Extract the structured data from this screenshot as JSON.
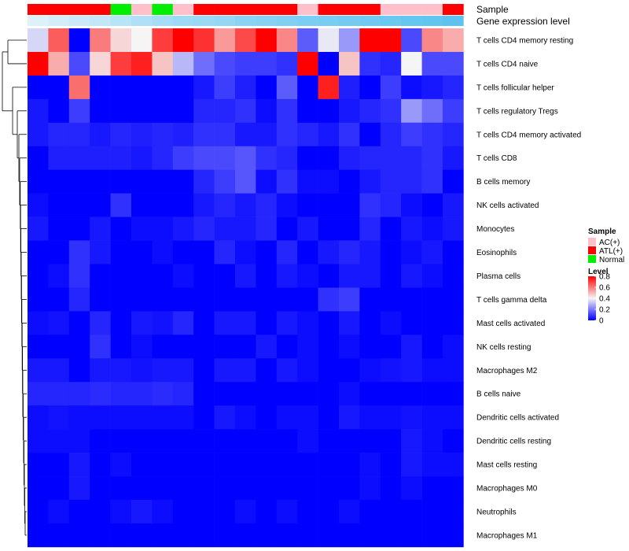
{
  "chart_data": {
    "type": "heatmap",
    "annotation_labels": [
      "Sample",
      "Gene expression level"
    ],
    "rows": [
      "T cells CD4 memory resting",
      "T cells CD4 naive",
      "T cells follicular helper",
      "T cells regulatory  Tregs",
      "T cells CD4 memory activated",
      "T cells CD8",
      "B cells memory",
      "NK cells activated",
      "Monocytes",
      "Eosinophils",
      "Plasma cells",
      "T cells gamma delta",
      "Mast cells activated",
      "NK cells resting",
      "Macrophages M2",
      "B cells naive",
      "Dendritic cells activated",
      "Dendritic cells resting",
      "Mast cells resting",
      "Macrophages M0",
      "Neutrophils",
      "Macrophages M1"
    ],
    "sample_groups": [
      "ATL(+)",
      "ATL(+)",
      "ATL(+)",
      "ATL(+)",
      "Normal",
      "AC(+)",
      "Normal",
      "AC(+)",
      "ATL(+)",
      "ATL(+)",
      "ATL(+)",
      "ATL(+)",
      "ATL(+)",
      "AC(+)",
      "ATL(+)",
      "ATL(+)",
      "ATL(+)",
      "AC(+)",
      "AC(+)",
      "AC(+)",
      "ATL(+)"
    ],
    "gene_expression_level": [
      0.05,
      0.1,
      0.15,
      0.2,
      0.25,
      0.3,
      0.35,
      0.4,
      0.42,
      0.45,
      0.5,
      0.52,
      0.55,
      0.58,
      0.6,
      0.62,
      0.65,
      0.67,
      0.7,
      0.72,
      0.75
    ],
    "values": [
      [
        0.35,
        0.65,
        0.0,
        0.6,
        0.45,
        0.4,
        0.7,
        0.8,
        0.72,
        0.55,
        0.68,
        0.8,
        0.58,
        0.15,
        0.38,
        0.25,
        0.8,
        0.8,
        0.12,
        0.58,
        0.52
      ],
      [
        0.8,
        0.52,
        0.12,
        0.45,
        0.7,
        0.75,
        0.48,
        0.3,
        0.18,
        0.12,
        0.1,
        0.1,
        0.08,
        0.8,
        0.0,
        0.48,
        0.08,
        0.06,
        0.4,
        0.12,
        0.12
      ],
      [
        0.0,
        0.0,
        0.62,
        0.0,
        0.0,
        0.0,
        0.0,
        0.0,
        0.04,
        0.1,
        0.05,
        0.0,
        0.15,
        0.0,
        0.75,
        0.05,
        0.0,
        0.1,
        0.02,
        0.04,
        0.06
      ],
      [
        0.04,
        0.0,
        0.1,
        0.0,
        0.0,
        0.0,
        0.0,
        0.0,
        0.06,
        0.06,
        0.08,
        0.02,
        0.08,
        0.0,
        0.0,
        0.04,
        0.06,
        0.08,
        0.25,
        0.18,
        0.1
      ],
      [
        0.04,
        0.06,
        0.06,
        0.04,
        0.06,
        0.05,
        0.06,
        0.05,
        0.08,
        0.08,
        0.04,
        0.04,
        0.08,
        0.06,
        0.04,
        0.08,
        0.0,
        0.06,
        0.1,
        0.08,
        0.06
      ],
      [
        0.0,
        0.05,
        0.05,
        0.05,
        0.05,
        0.04,
        0.06,
        0.1,
        0.12,
        0.12,
        0.14,
        0.08,
        0.06,
        0.0,
        0.0,
        0.05,
        0.06,
        0.06,
        0.06,
        0.08,
        0.04
      ],
      [
        0.0,
        0.0,
        0.0,
        0.0,
        0.0,
        0.0,
        0.0,
        0.0,
        0.06,
        0.1,
        0.14,
        0.02,
        0.08,
        0.02,
        0.02,
        0.0,
        0.04,
        0.06,
        0.06,
        0.08,
        0.0
      ],
      [
        0.02,
        0.0,
        0.0,
        0.0,
        0.08,
        0.0,
        0.0,
        0.0,
        0.04,
        0.06,
        0.04,
        0.06,
        0.02,
        0.0,
        0.0,
        0.0,
        0.08,
        0.06,
        0.02,
        0.0,
        0.04
      ],
      [
        0.04,
        0.0,
        0.0,
        0.04,
        0.0,
        0.02,
        0.02,
        0.04,
        0.06,
        0.04,
        0.04,
        0.06,
        0.0,
        0.04,
        0.0,
        0.0,
        0.06,
        0.0,
        0.04,
        0.02,
        0.04
      ],
      [
        0.0,
        0.0,
        0.08,
        0.04,
        0.0,
        0.0,
        0.02,
        0.0,
        0.0,
        0.06,
        0.02,
        0.0,
        0.06,
        0.0,
        0.04,
        0.06,
        0.04,
        0.0,
        0.02,
        0.04,
        0.0
      ],
      [
        0.0,
        0.02,
        0.08,
        0.0,
        0.0,
        0.0,
        0.0,
        0.02,
        0.0,
        0.0,
        0.04,
        0.0,
        0.04,
        0.02,
        0.0,
        0.04,
        0.04,
        0.0,
        0.04,
        0.02,
        0.0
      ],
      [
        0.0,
        0.0,
        0.06,
        0.0,
        0.0,
        0.0,
        0.0,
        0.0,
        0.0,
        0.0,
        0.0,
        0.0,
        0.0,
        0.0,
        0.08,
        0.1,
        0.0,
        0.0,
        0.0,
        0.0,
        0.0
      ],
      [
        0.02,
        0.03,
        0.0,
        0.06,
        0.0,
        0.04,
        0.03,
        0.06,
        0.0,
        0.04,
        0.04,
        0.0,
        0.04,
        0.02,
        0.0,
        0.04,
        0.0,
        0.02,
        0.0,
        0.0,
        0.0
      ],
      [
        0.0,
        0.0,
        0.0,
        0.08,
        0.0,
        0.02,
        0.0,
        0.0,
        0.0,
        0.0,
        0.0,
        0.04,
        0.0,
        0.02,
        0.0,
        0.02,
        0.0,
        0.0,
        0.04,
        0.0,
        0.02
      ],
      [
        0.04,
        0.04,
        0.0,
        0.04,
        0.04,
        0.03,
        0.04,
        0.04,
        0.0,
        0.04,
        0.04,
        0.0,
        0.04,
        0.02,
        0.0,
        0.0,
        0.02,
        0.03,
        0.04,
        0.02,
        0.02
      ],
      [
        0.06,
        0.06,
        0.06,
        0.07,
        0.06,
        0.06,
        0.07,
        0.06,
        0.0,
        0.0,
        0.0,
        0.0,
        0.0,
        0.0,
        0.0,
        0.02,
        0.0,
        0.0,
        0.0,
        0.0,
        0.0
      ],
      [
        0.02,
        0.03,
        0.02,
        0.02,
        0.02,
        0.02,
        0.02,
        0.02,
        0.0,
        0.04,
        0.02,
        0.0,
        0.02,
        0.02,
        0.0,
        0.04,
        0.02,
        0.02,
        0.03,
        0.02,
        0.02
      ],
      [
        0.02,
        0.02,
        0.02,
        0.0,
        0.0,
        0.0,
        0.0,
        0.0,
        0.0,
        0.0,
        0.0,
        0.0,
        0.0,
        0.02,
        0.0,
        0.0,
        0.0,
        0.0,
        0.04,
        0.02,
        0.0
      ],
      [
        0.0,
        0.0,
        0.04,
        0.0,
        0.02,
        0.0,
        0.0,
        0.0,
        0.0,
        0.0,
        0.0,
        0.0,
        0.0,
        0.0,
        0.0,
        0.0,
        0.02,
        0.0,
        0.04,
        0.02,
        0.02
      ],
      [
        0.0,
        0.0,
        0.04,
        0.0,
        0.0,
        0.0,
        0.0,
        0.0,
        0.0,
        0.0,
        0.0,
        0.0,
        0.0,
        0.0,
        0.0,
        0.0,
        0.02,
        0.0,
        0.02,
        0.0,
        0.0
      ],
      [
        0.0,
        0.02,
        0.0,
        0.0,
        0.02,
        0.04,
        0.02,
        0.0,
        0.0,
        0.0,
        0.02,
        0.0,
        0.02,
        0.0,
        0.0,
        0.02,
        0.0,
        0.0,
        0.0,
        0.0,
        0.0
      ],
      [
        0.0,
        0.0,
        0.0,
        0.0,
        0.0,
        0.0,
        0.0,
        0.0,
        0.0,
        0.0,
        0.0,
        0.0,
        0.0,
        0.0,
        0.0,
        0.0,
        0.0,
        0.0,
        0.0,
        0.0,
        0.0
      ]
    ],
    "legend_sample": {
      "title": "Sample",
      "items": [
        {
          "label": "AC(+)",
          "color": "#FFC0CB"
        },
        {
          "label": "ATL(+)",
          "color": "#FF0000"
        },
        {
          "label": "Normal",
          "color": "#00EE00"
        }
      ]
    },
    "legend_level": {
      "title": "Level",
      "ticks": [
        0.8,
        0.6,
        0.4,
        0.2,
        0
      ],
      "range": [
        0,
        0.8
      ]
    },
    "colors": {
      "low": "#0000FF",
      "mid": "#F5F5F5",
      "high": "#FF0000",
      "expr_low": "#E6F4FC",
      "expr_high": "#5CC3F0"
    }
  }
}
